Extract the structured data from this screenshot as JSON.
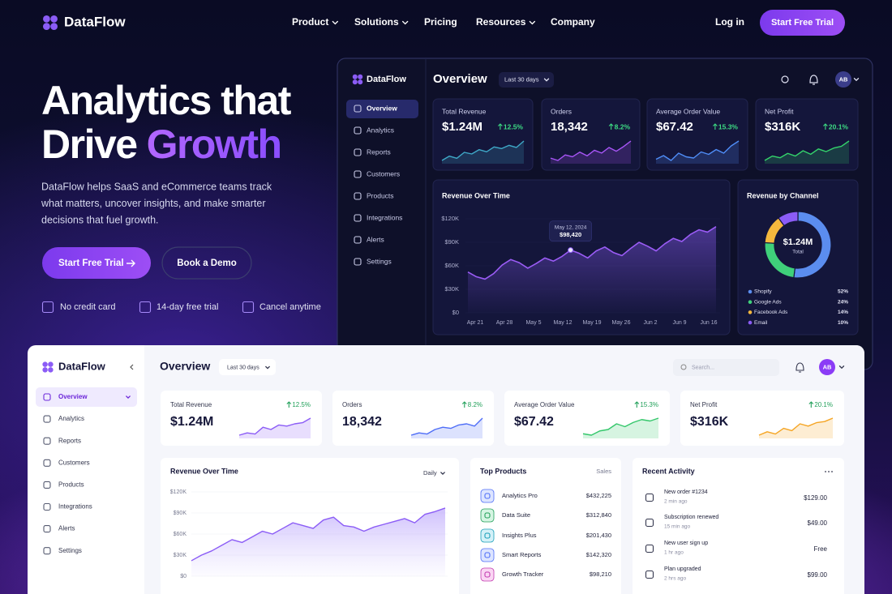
{
  "nav": {
    "brand": "DataFlow",
    "links": [
      "Product",
      "Solutions",
      "Pricing",
      "Resources",
      "Company"
    ],
    "login": "Log in",
    "cta": "Start Free Trial"
  },
  "hero": {
    "title_line1": "Analytics that",
    "title_line2": "Drive",
    "title_highlight": "Growth",
    "description": [
      "DataFlow helps SaaS and eCommerce teams track",
      "what matters, uncover insights, and make smarter",
      "decisions that fuel growth."
    ],
    "primary_button": "Start Free Trial",
    "secondary_button": "Book a Demo",
    "features": [
      "No credit card",
      "14-day free trial",
      "Cancel anytime"
    ]
  },
  "dark_dashboard": {
    "brand": "DataFlow",
    "menu": [
      "Overview",
      "Analytics",
      "Reports",
      "Customers",
      "Products",
      "Integrations",
      "Alerts",
      "Settings"
    ],
    "heading": "Overview",
    "range": "Last 30 days",
    "avatar": "AB",
    "kpis": [
      {
        "label": "Total Revenue",
        "value": "$1.24M",
        "change": "12.5%",
        "color": "#3fa9c8",
        "trend": [
          30,
          38,
          34,
          45,
          42,
          50,
          46,
          55,
          52,
          58,
          54,
          66
        ]
      },
      {
        "label": "Orders",
        "value": "18,342",
        "change": "8.2%",
        "color": "#a855f7",
        "trend": [
          35,
          30,
          42,
          38,
          48,
          40,
          52,
          46,
          58,
          50,
          60,
          72
        ]
      },
      {
        "label": "Average Order Value",
        "value": "$67.42",
        "change": "15.3%",
        "color": "#4f8df7",
        "trend": [
          40,
          46,
          38,
          50,
          44,
          42,
          52,
          48,
          56,
          50,
          62,
          70
        ]
      },
      {
        "label": "Net Profit",
        "value": "$316K",
        "change": "20.1%",
        "color": "#34d36b",
        "trend": [
          30,
          40,
          36,
          46,
          40,
          52,
          44,
          56,
          50,
          58,
          62,
          74
        ]
      }
    ],
    "revenue_chart": {
      "type": "line",
      "title": "Revenue Over Time",
      "color": "#9b5cf6",
      "categories": [
        "Apr 21",
        "Apr 28",
        "May 5",
        "May 12",
        "May 19",
        "May 26",
        "Jun 2",
        "Jun 9",
        "Jun 16"
      ],
      "ylim": [
        0,
        120000
      ],
      "yticks": [
        {
          "value": 0,
          "label": "$0"
        },
        {
          "value": 30000,
          "label": "$30K"
        },
        {
          "value": 60000,
          "label": "$60K"
        },
        {
          "value": 90000,
          "label": "$90K"
        },
        {
          "value": 120000,
          "label": "$120K"
        }
      ],
      "values": [
        52000,
        46000,
        43000,
        50000,
        61000,
        68000,
        64000,
        57000,
        63000,
        70000,
        66000,
        72000,
        80000,
        76000,
        70000,
        79000,
        84000,
        77000,
        73000,
        82000,
        90000,
        85000,
        79000,
        88000,
        95000,
        91000,
        100000,
        106000,
        103000,
        110000
      ],
      "tooltip": {
        "date": "May 12, 2024",
        "value": "$98,420"
      }
    },
    "channel_chart": {
      "type": "pie",
      "title": "Revenue by Channel",
      "center_value": "$1.24M",
      "center_label": "Total",
      "categories": [
        "Shopify",
        "Google Ads",
        "Facebook Ads",
        "Email"
      ],
      "values": [
        52,
        24,
        14,
        10
      ],
      "value_labels": [
        "52%",
        "24%",
        "14%",
        "10%"
      ],
      "colors": [
        "#5b8def",
        "#3fd07a",
        "#f5b83d",
        "#8b5cf6"
      ]
    }
  },
  "light_dashboard": {
    "brand": "DataFlow",
    "menu": [
      "Overview",
      "Analytics",
      "Reports",
      "Customers",
      "Products",
      "Integrations",
      "Alerts",
      "Settings"
    ],
    "heading": "Overview",
    "range": "Last 30 days",
    "search": "Search...",
    "avatar": "AB",
    "kpis": [
      {
        "label": "Total Revenue",
        "value": "$1.24M",
        "change": "12.5%",
        "color": "#8b5cf6",
        "trend": [
          30,
          34,
          32,
          44,
          40,
          48,
          46,
          50,
          52,
          60
        ]
      },
      {
        "label": "Orders",
        "value": "18,342",
        "change": "8.2%",
        "color": "#4f6ef7",
        "trend": [
          28,
          32,
          30,
          38,
          42,
          40,
          46,
          48,
          44,
          58
        ]
      },
      {
        "label": "Average Order Value",
        "value": "$67.42",
        "change": "15.3%",
        "color": "#34c76b",
        "trend": [
          30,
          28,
          34,
          36,
          44,
          40,
          46,
          50,
          48,
          52
        ]
      },
      {
        "label": "Net Profit",
        "value": "$316K",
        "change": "20.1%",
        "color": "#f5a524",
        "trend": [
          28,
          34,
          30,
          40,
          36,
          48,
          44,
          50,
          52,
          58
        ]
      }
    ],
    "revenue_chart": {
      "type": "area",
      "title": "Revenue Over Time",
      "period": "Daily",
      "color": "#8b5cf6",
      "ylim": [
        0,
        120000
      ],
      "yticks": [
        {
          "value": 0,
          "label": "$0"
        },
        {
          "value": 30000,
          "label": "$30K"
        },
        {
          "value": 60000,
          "label": "$60K"
        },
        {
          "value": 90000,
          "label": "$90K"
        },
        {
          "value": 120000,
          "label": "$120K"
        }
      ],
      "values": [
        22000,
        30000,
        36000,
        44000,
        52000,
        48000,
        56000,
        64000,
        60000,
        68000,
        76000,
        72000,
        68000,
        80000,
        84000,
        72000,
        70000,
        64000,
        70000,
        74000,
        78000,
        82000,
        76000,
        88000,
        92000,
        97000
      ]
    },
    "top_products": {
      "title": "Top Products",
      "column": "Sales",
      "rows": [
        [
          "Analytics Pro",
          "$432,225"
        ],
        [
          "Data Suite",
          "$312,840"
        ],
        [
          "Insights Plus",
          "$201,430"
        ],
        [
          "Smart Reports",
          "$142,320"
        ],
        [
          "Growth Tracker",
          "$98,210"
        ]
      ]
    },
    "recent_activity": {
      "title": "Recent Activity",
      "rows": [
        [
          "New order #1234",
          "2 min ago",
          "$129.00"
        ],
        [
          "Subscription renewed",
          "15 min ago",
          "$49.00"
        ],
        [
          "New user sign up",
          "1 hr ago",
          "Free"
        ],
        [
          "Plan upgraded",
          "2 hrs ago",
          "$99.00"
        ]
      ]
    }
  }
}
